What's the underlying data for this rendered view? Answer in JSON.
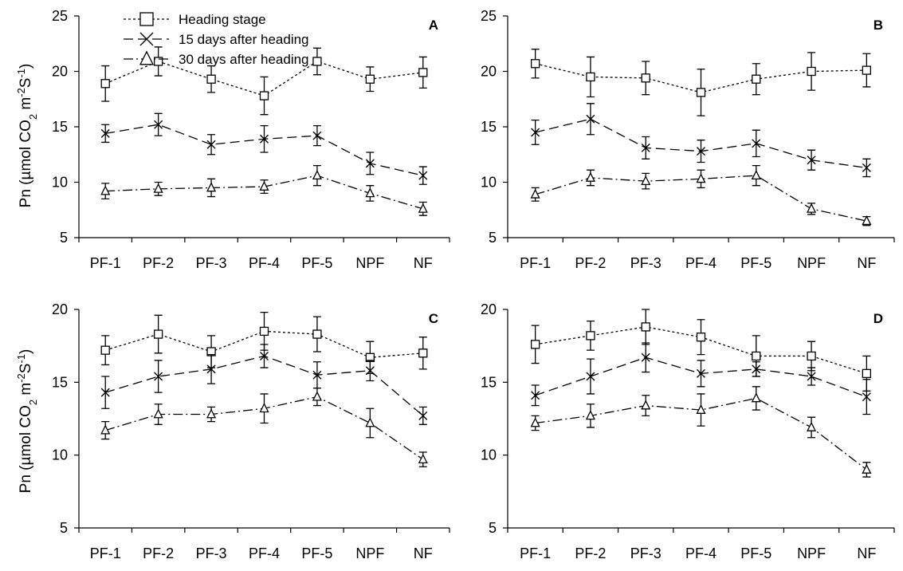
{
  "figure": {
    "ylabel_prefix": "Pn",
    "ylabel_unit_open": "(µmol CO",
    "ylabel_sub": "2",
    "ylabel_mid": " m",
    "ylabel_sup1": "-2",
    "ylabel_S": "S",
    "ylabel_sup2": "-1",
    "ylabel_close": ")"
  },
  "legend": [
    "Heading stage",
    "15 days after heading",
    "30 days after heading"
  ],
  "chart_data": [
    {
      "type": "line",
      "panel_label": "A",
      "categories": [
        "PF-1",
        "PF-2",
        "PF-3",
        "PF-4",
        "PF-5",
        "NPF",
        "NF"
      ],
      "ylim": [
        5,
        25
      ],
      "yticks": [
        5,
        10,
        15,
        20,
        25
      ],
      "series": [
        {
          "name": "Heading stage",
          "values": [
            18.9,
            20.9,
            19.3,
            17.8,
            20.9,
            19.3,
            19.9
          ],
          "errors": [
            1.6,
            1.3,
            1.2,
            1.7,
            1.2,
            1.1,
            1.4
          ]
        },
        {
          "name": "15 days after heading",
          "values": [
            14.4,
            15.2,
            13.4,
            13.9,
            14.2,
            11.7,
            10.6
          ],
          "errors": [
            0.8,
            1.0,
            0.9,
            1.2,
            0.9,
            1.0,
            0.8
          ]
        },
        {
          "name": "30 days after heading",
          "values": [
            9.2,
            9.4,
            9.5,
            9.6,
            10.6,
            9.0,
            7.6
          ],
          "errors": [
            0.7,
            0.6,
            0.8,
            0.6,
            0.9,
            0.7,
            0.6
          ]
        }
      ]
    },
    {
      "type": "line",
      "panel_label": "B",
      "categories": [
        "PF-1",
        "PF-2",
        "PF-3",
        "PF-4",
        "PF-5",
        "NPF",
        "NF"
      ],
      "ylim": [
        5,
        25
      ],
      "yticks": [
        5,
        10,
        15,
        20,
        25
      ],
      "series": [
        {
          "name": "Heading stage",
          "values": [
            20.7,
            19.5,
            19.4,
            18.1,
            19.3,
            20.0,
            20.1
          ],
          "errors": [
            1.3,
            1.8,
            1.5,
            2.1,
            1.4,
            1.7,
            1.5
          ]
        },
        {
          "name": "15 days after heading",
          "values": [
            14.5,
            15.7,
            13.1,
            12.8,
            13.5,
            12.0,
            11.3
          ],
          "errors": [
            1.1,
            1.4,
            1.0,
            1.0,
            1.2,
            0.9,
            0.8
          ]
        },
        {
          "name": "30 days after heading",
          "values": [
            8.9,
            10.4,
            10.1,
            10.3,
            10.6,
            7.6,
            6.5
          ],
          "errors": [
            0.6,
            0.7,
            0.7,
            0.8,
            0.9,
            0.5,
            0.4
          ]
        }
      ]
    },
    {
      "type": "line",
      "panel_label": "C",
      "categories": [
        "PF-1",
        "PF-2",
        "PF-3",
        "PF-4",
        "PF-5",
        "NPF",
        "NF"
      ],
      "ylim": [
        5,
        20
      ],
      "yticks": [
        5,
        10,
        15,
        20
      ],
      "series": [
        {
          "name": "Heading stage",
          "values": [
            17.2,
            18.3,
            17.1,
            18.5,
            18.3,
            16.7,
            17.0
          ],
          "errors": [
            1.0,
            1.3,
            1.1,
            1.3,
            1.2,
            1.1,
            1.1
          ]
        },
        {
          "name": "15 days after heading",
          "values": [
            14.3,
            15.4,
            15.9,
            16.8,
            15.5,
            15.8,
            12.7
          ],
          "errors": [
            1.1,
            1.1,
            1.0,
            0.8,
            0.9,
            0.7,
            0.6
          ]
        },
        {
          "name": "30 days after heading",
          "values": [
            11.7,
            12.8,
            12.8,
            13.2,
            14.0,
            12.2,
            9.7
          ],
          "errors": [
            0.6,
            0.7,
            0.5,
            1.0,
            0.6,
            1.0,
            0.5
          ]
        }
      ]
    },
    {
      "type": "line",
      "panel_label": "D",
      "categories": [
        "PF-1",
        "PF-2",
        "PF-3",
        "PF-4",
        "PF-5",
        "NPF",
        "NF"
      ],
      "ylim": [
        5,
        20
      ],
      "yticks": [
        5,
        10,
        15,
        20
      ],
      "series": [
        {
          "name": "Heading stage",
          "values": [
            17.6,
            18.2,
            18.8,
            18.1,
            16.8,
            16.8,
            15.6
          ],
          "errors": [
            1.3,
            1.0,
            1.2,
            1.2,
            1.4,
            1.0,
            1.2
          ]
        },
        {
          "name": "15 days after heading",
          "values": [
            14.1,
            15.4,
            16.7,
            15.6,
            15.9,
            15.4,
            14.0
          ],
          "errors": [
            0.7,
            1.2,
            1.0,
            0.9,
            0.5,
            0.6,
            1.2
          ]
        },
        {
          "name": "30 days after heading",
          "values": [
            12.2,
            12.7,
            13.4,
            13.1,
            13.9,
            11.9,
            9.0
          ],
          "errors": [
            0.5,
            0.8,
            0.7,
            1.1,
            0.8,
            0.7,
            0.5
          ]
        }
      ]
    }
  ]
}
